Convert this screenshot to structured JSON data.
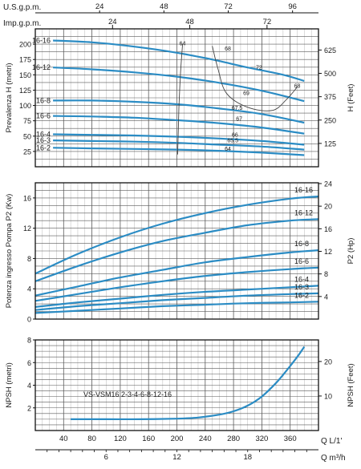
{
  "colors": {
    "curve": "#2b8cc4",
    "efficiency": "#333333",
    "grid": "#5a5a5a",
    "minor_grid": "#b8b8b8",
    "frame": "#111111",
    "text": "#1a1a1a"
  },
  "top_axes": {
    "usgpm_label": "U.S.g.p.m.",
    "usgpm_ticks": [
      24,
      48,
      72,
      96
    ],
    "impgpm_label": "Imp.g.p.m.",
    "impgpm_ticks": [
      24,
      48,
      72
    ]
  },
  "bottom_axes": {
    "lmin_label": "Q  L/1'",
    "lmin_ticks": [
      40,
      80,
      120,
      160,
      200,
      240,
      280,
      320,
      360
    ],
    "m3h_label": "Q  m³/h",
    "m3h_ticks": [
      6,
      12,
      18
    ]
  },
  "chart_data": [
    {
      "type": "line",
      "name": "head",
      "ylabel": "Prevalenza H (metri)",
      "y2label": "H (Feet)",
      "xlim": [
        0,
        400
      ],
      "ylim": [
        0,
        225
      ],
      "yticks": [
        25,
        50,
        75,
        100,
        125,
        150,
        175,
        200
      ],
      "y2ticks": [
        125,
        250,
        375,
        500,
        625
      ],
      "grid": true,
      "series": [
        {
          "name": "16-16",
          "x": [
            25,
            80,
            140,
            200,
            250,
            300,
            350,
            380
          ],
          "y": [
            206,
            203,
            196,
            186,
            175,
            162,
            150,
            140
          ]
        },
        {
          "name": "16-12",
          "x": [
            25,
            80,
            140,
            200,
            260,
            320,
            380
          ],
          "y": [
            162,
            159,
            154,
            147,
            137,
            124,
            107
          ]
        },
        {
          "name": "16-8",
          "x": [
            25,
            80,
            140,
            200,
            260,
            320,
            380
          ],
          "y": [
            108,
            108,
            106,
            102,
            95,
            86,
            72
          ]
        },
        {
          "name": "16-6",
          "x": [
            25,
            80,
            140,
            200,
            260,
            320,
            380
          ],
          "y": [
            83,
            82,
            80,
            76,
            71,
            64,
            54
          ]
        },
        {
          "name": "16-4",
          "x": [
            25,
            80,
            140,
            200,
            260,
            320,
            380
          ],
          "y": [
            53,
            52,
            51,
            49,
            46,
            42,
            36
          ]
        },
        {
          "name": "16-3",
          "x": [
            25,
            80,
            140,
            200,
            260,
            320,
            380
          ],
          "y": [
            43,
            42,
            41,
            39,
            36,
            33,
            28
          ]
        },
        {
          "name": "16-2",
          "x": [
            25,
            80,
            140,
            200,
            260,
            320,
            380
          ],
          "y": [
            31,
            30,
            29,
            28,
            26,
            23,
            19
          ]
        }
      ],
      "efficiency_labels": [
        {
          "text": "64",
          "x": 208,
          "y": 198
        },
        {
          "text": "68",
          "x": 272,
          "y": 190
        },
        {
          "text": "72",
          "x": 316,
          "y": 159
        },
        {
          "text": "68",
          "x": 370,
          "y": 129
        },
        {
          "text": "69",
          "x": 298,
          "y": 117
        },
        {
          "text": "67.5",
          "x": 285,
          "y": 93
        },
        {
          "text": "67",
          "x": 288,
          "y": 75
        },
        {
          "text": "66",
          "x": 282,
          "y": 49
        },
        {
          "text": "65.5",
          "x": 279,
          "y": 40
        },
        {
          "text": "64",
          "x": 272,
          "y": 26
        }
      ]
    },
    {
      "type": "line",
      "name": "power",
      "ylabel": "Potenza ingresso Pompa P2 (Kw)",
      "y2label": "P2 (Hp)",
      "xlim": [
        0,
        400
      ],
      "ylim": [
        0,
        18
      ],
      "yticks": [
        0,
        4,
        8,
        12,
        16
      ],
      "y2ticks": [
        4,
        8,
        12,
        16,
        20,
        24
      ],
      "grid": true,
      "series": [
        {
          "name": "16-16",
          "x": [
            0,
            60,
            120,
            180,
            240,
            300,
            360,
            400
          ],
          "y": [
            6.0,
            8.6,
            10.8,
            12.6,
            14.0,
            15.1,
            15.9,
            16.2
          ]
        },
        {
          "name": "16-12",
          "x": [
            0,
            60,
            120,
            180,
            240,
            300,
            360,
            400
          ],
          "y": [
            5.0,
            7.0,
            8.8,
            10.3,
            11.4,
            12.4,
            13.0,
            13.2
          ]
        },
        {
          "name": "16-8",
          "x": [
            0,
            60,
            120,
            180,
            240,
            300,
            360,
            400
          ],
          "y": [
            3.1,
            4.3,
            5.5,
            6.5,
            7.5,
            8.2,
            8.8,
            9.1
          ]
        },
        {
          "name": "16-6",
          "x": [
            0,
            60,
            120,
            180,
            240,
            300,
            360,
            400
          ],
          "y": [
            2.4,
            3.3,
            4.2,
            5.0,
            5.7,
            6.2,
            6.6,
            6.8
          ]
        },
        {
          "name": "16-4",
          "x": [
            0,
            60,
            120,
            180,
            240,
            300,
            360,
            400
          ],
          "y": [
            1.6,
            2.2,
            2.7,
            3.2,
            3.6,
            3.9,
            4.2,
            4.4
          ]
        },
        {
          "name": "16-3",
          "x": [
            0,
            60,
            120,
            180,
            240,
            300,
            360,
            400
          ],
          "y": [
            1.2,
            1.7,
            2.1,
            2.5,
            2.8,
            3.1,
            3.3,
            3.4
          ]
        },
        {
          "name": "16-2",
          "x": [
            0,
            60,
            120,
            180,
            240,
            300,
            360,
            400
          ],
          "y": [
            0.8,
            1.1,
            1.4,
            1.7,
            1.9,
            2.1,
            2.2,
            2.3
          ]
        }
      ]
    },
    {
      "type": "line",
      "name": "npsh",
      "ylabel": "NPSH (metri)",
      "y2label": "NPSH (Feet)",
      "xlim": [
        0,
        400
      ],
      "ylim": [
        0,
        8
      ],
      "yticks": [
        2,
        4,
        6,
        8
      ],
      "y2ticks": [
        10,
        20
      ],
      "grid": true,
      "legend_text": "VS-VSM16 2-3-4-6-8-12-16",
      "series": [
        {
          "name": "VS-VSM16",
          "x": [
            50,
            100,
            150,
            200,
            230,
            260,
            280,
            300,
            320,
            340,
            355,
            370,
            380
          ],
          "y": [
            1.0,
            1.0,
            1.0,
            1.05,
            1.15,
            1.4,
            1.7,
            2.2,
            3.0,
            4.2,
            5.3,
            6.5,
            7.4
          ]
        }
      ]
    }
  ]
}
